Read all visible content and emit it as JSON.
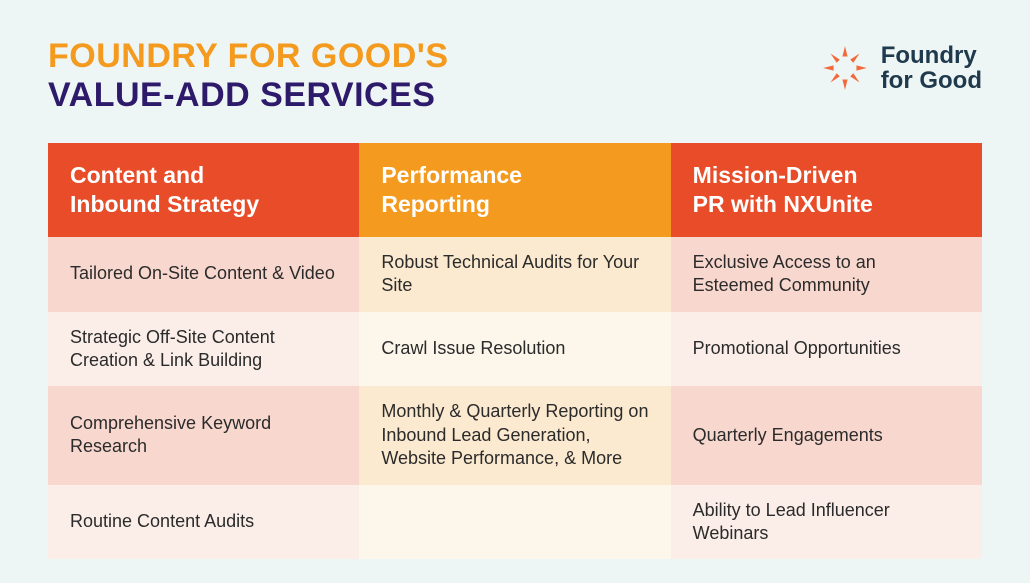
{
  "title": {
    "line1": "FOUNDRY FOR GOOD'S",
    "line2": "VALUE-ADD SERVICES",
    "line1_color": "#f39a1f",
    "line2_color": "#2e1a6a"
  },
  "logo": {
    "word1": "Foundry",
    "word2": "for Good",
    "text_color": "#1f3a4d",
    "icon_color": "#f26a3b"
  },
  "colors": {
    "page_bg": "#eef6f5",
    "text_primary": "#2b2b2b"
  },
  "table": {
    "headers": [
      {
        "label": "Content and\nInbound Strategy",
        "bg": "#e84c28"
      },
      {
        "label": "Performance\nReporting",
        "bg": "#f39a1f"
      },
      {
        "label": "Mission-Driven\nPR with NXUnite",
        "bg": "#e84c28"
      }
    ],
    "row_bg": {
      "col0_a": "#f8d8ce",
      "col0_b": "#fbeee9",
      "col1_a": "#fbead0",
      "col1_b": "#fdf6eb",
      "col2_a": "#f8d8ce",
      "col2_b": "#fbeee9"
    },
    "rows": [
      [
        "Tailored On-Site Content & Video",
        "Robust Technical Audits for Your Site",
        "Exclusive Access to an Esteemed Community"
      ],
      [
        "Strategic Off-Site Content Creation & Link Building",
        "Crawl Issue Resolution",
        "Promotional Opportunities"
      ],
      [
        "Comprehensive Keyword Research",
        "Monthly & Quarterly Reporting on Inbound Lead Generation, Website Performance, & More",
        "Quarterly Engagements"
      ],
      [
        "Routine Content Audits",
        "",
        "Ability to Lead Influencer Webinars"
      ]
    ]
  }
}
